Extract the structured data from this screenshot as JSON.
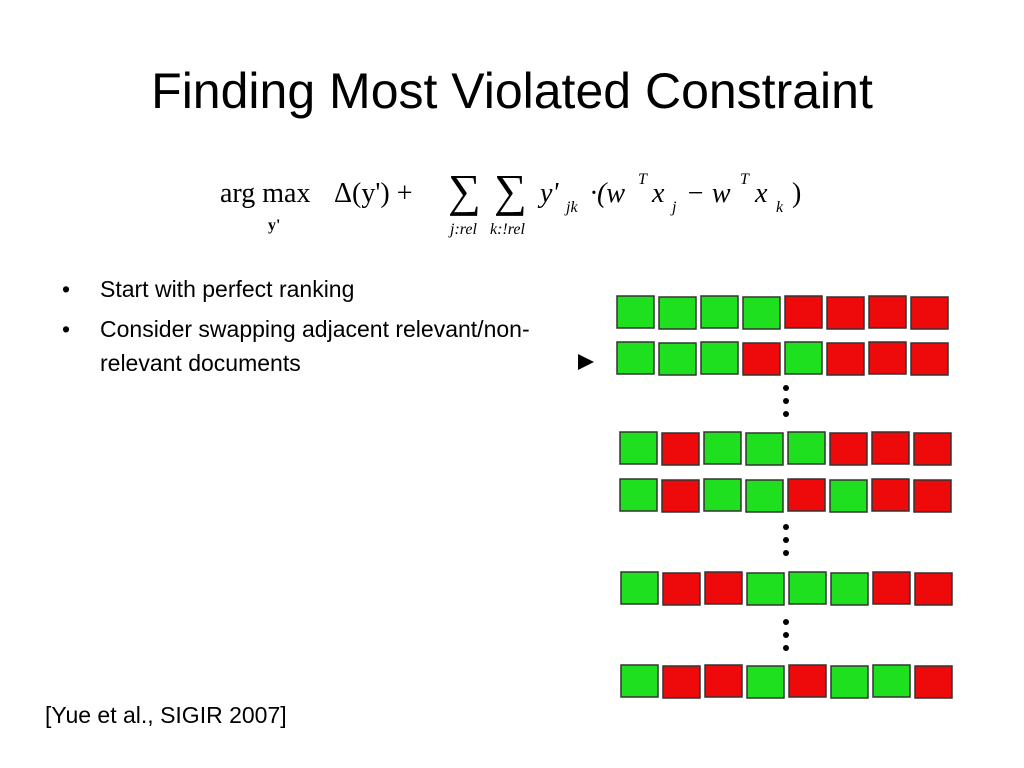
{
  "title": "Finding Most Violated Constraint",
  "formula": {
    "operator": "arg max",
    "operator_sub": "y'",
    "loss": "Δ(y') +",
    "sum_symbol": "∑",
    "sum1_sub": "j:rel",
    "sum2_sub": "k:!rel",
    "term": "y'",
    "term_sub": "jk",
    "open": "·(w",
    "sup": "T",
    "x": "x",
    "x1_sub": "j",
    "minus": "− w",
    "x2_sub": "k",
    "close": ")"
  },
  "bullets": [
    "Start with perfect ranking",
    "Consider swapping adjacent relevant/non-relevant documents"
  ],
  "citation": "[Yue et al., SIGIR 2007]",
  "rankings": [
    [
      "#1ee01e",
      "#1ee01e",
      "#1ee01e",
      "#1ee01e",
      "#ee0a0a",
      "#ee0a0a",
      "#ee0a0a",
      "#ee0a0a"
    ],
    [
      "#1ee01e",
      "#1ee01e",
      "#1ee01e",
      "#ee0a0a",
      "#1ee01e",
      "#ee0a0a",
      "#ee0a0a",
      "#ee0a0a"
    ],
    [
      "#1ee01e",
      "#ee0a0a",
      "#1ee01e",
      "#1ee01e",
      "#1ee01e",
      "#ee0a0a",
      "#ee0a0a",
      "#ee0a0a"
    ],
    [
      "#1ee01e",
      "#ee0a0a",
      "#1ee01e",
      "#1ee01e",
      "#ee0a0a",
      "#1ee01e",
      "#ee0a0a",
      "#ee0a0a"
    ],
    [
      "#1ee01e",
      "#ee0a0a",
      "#ee0a0a",
      "#1ee01e",
      "#1ee01e",
      "#1ee01e",
      "#ee0a0a",
      "#ee0a0a"
    ],
    [
      "#1ee01e",
      "#ee0a0a",
      "#ee0a0a",
      "#1ee01e",
      "#ee0a0a",
      "#1ee01e",
      "#1ee01e",
      "#ee0a0a"
    ]
  ]
}
